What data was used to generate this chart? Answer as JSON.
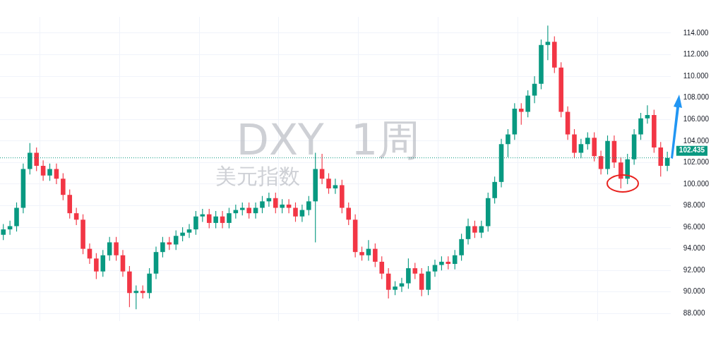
{
  "chart_data": {
    "type": "candlestick",
    "title": "DXY  1周",
    "subtitle": "美元指数",
    "categories": [
      null,
      null,
      null,
      null,
      null,
      null,
      null,
      null,
      null,
      null,
      null,
      null,
      null,
      null,
      null,
      null,
      null,
      null,
      null,
      null,
      null,
      null,
      null,
      null,
      null,
      null,
      null,
      null,
      null,
      null,
      null,
      null,
      null,
      null,
      null,
      null,
      null,
      null,
      null,
      null,
      null,
      null,
      null,
      null,
      null,
      null,
      null,
      null,
      null,
      null,
      null,
      null,
      null,
      null,
      null,
      null,
      null,
      null,
      null,
      null,
      null,
      null,
      null,
      null,
      null,
      null,
      null,
      null,
      null,
      null,
      null,
      null,
      null,
      null,
      null,
      null,
      null,
      null,
      null,
      null,
      null,
      null,
      null,
      null,
      null,
      null,
      null,
      null,
      null,
      null,
      null,
      null,
      null,
      null,
      null,
      null,
      null,
      null,
      null,
      null,
      null
    ],
    "ohlc": [
      [
        95.3,
        96.3,
        94.8,
        95.8
      ],
      [
        95.8,
        96.6,
        95.3,
        96.1
      ],
      [
        96.1,
        98.3,
        95.6,
        97.8
      ],
      [
        97.8,
        101.9,
        97.3,
        101.4
      ],
      [
        101.4,
        103.8,
        100.9,
        102.9
      ],
      [
        102.9,
        103.4,
        101.2,
        101.7
      ],
      [
        101.7,
        102.2,
        100.3,
        100.8
      ],
      [
        100.8,
        101.9,
        100.3,
        101.4
      ],
      [
        101.4,
        101.9,
        100.0,
        100.5
      ],
      [
        100.5,
        101.0,
        98.5,
        99.0
      ],
      [
        99.0,
        99.5,
        96.8,
        97.3
      ],
      [
        97.3,
        97.8,
        96.2,
        96.7
      ],
      [
        96.7,
        97.2,
        93.5,
        94.0
      ],
      [
        94.0,
        94.5,
        92.6,
        93.1
      ],
      [
        93.1,
        93.6,
        91.2,
        91.9
      ],
      [
        91.9,
        93.9,
        91.4,
        93.4
      ],
      [
        93.4,
        95.1,
        92.9,
        94.6
      ],
      [
        94.6,
        95.1,
        92.9,
        93.4
      ],
      [
        93.4,
        93.9,
        91.4,
        91.9
      ],
      [
        91.9,
        92.4,
        88.6,
        89.9
      ],
      [
        89.9,
        90.6,
        88.4,
        90.1
      ],
      [
        90.1,
        90.6,
        89.4,
        89.9
      ],
      [
        89.9,
        92.2,
        89.4,
        91.7
      ],
      [
        91.7,
        94.2,
        91.2,
        93.7
      ],
      [
        93.7,
        95.1,
        93.2,
        94.6
      ],
      [
        94.6,
        95.1,
        93.9,
        94.4
      ],
      [
        94.4,
        95.7,
        93.9,
        95.2
      ],
      [
        95.2,
        96.0,
        94.7,
        95.5
      ],
      [
        95.5,
        96.3,
        95.0,
        95.8
      ],
      [
        95.8,
        97.5,
        95.3,
        97.0
      ],
      [
        97.0,
        97.7,
        96.5,
        97.2
      ],
      [
        97.2,
        97.7,
        95.9,
        96.4
      ],
      [
        96.4,
        97.5,
        95.9,
        97.0
      ],
      [
        97.0,
        97.5,
        95.9,
        96.4
      ],
      [
        96.4,
        97.8,
        95.9,
        97.3
      ],
      [
        97.3,
        98.1,
        96.8,
        97.6
      ],
      [
        97.6,
        98.3,
        97.1,
        97.8
      ],
      [
        97.8,
        98.3,
        96.8,
        97.3
      ],
      [
        97.3,
        98.3,
        96.8,
        97.8
      ],
      [
        97.8,
        98.9,
        97.3,
        98.4
      ],
      [
        98.4,
        99.2,
        97.9,
        98.7
      ],
      [
        98.7,
        99.2,
        97.3,
        97.8
      ],
      [
        97.8,
        98.6,
        97.3,
        98.1
      ],
      [
        98.1,
        98.6,
        97.3,
        97.8
      ],
      [
        97.8,
        98.3,
        96.5,
        97.0
      ],
      [
        97.0,
        98.1,
        96.5,
        97.6
      ],
      [
        97.6,
        98.9,
        97.1,
        98.4
      ],
      [
        98.4,
        102.9,
        94.6,
        101.4
      ],
      [
        101.4,
        102.8,
        100.0,
        100.5
      ],
      [
        100.5,
        101.0,
        99.1,
        99.6
      ],
      [
        99.6,
        100.5,
        99.1,
        99.9
      ],
      [
        99.9,
        100.4,
        97.3,
        97.8
      ],
      [
        97.8,
        98.3,
        96.2,
        96.7
      ],
      [
        96.7,
        97.2,
        93.2,
        93.7
      ],
      [
        93.7,
        94.2,
        92.9,
        93.4
      ],
      [
        93.4,
        94.8,
        92.9,
        94.0
      ],
      [
        94.0,
        94.5,
        92.3,
        92.8
      ],
      [
        92.8,
        93.3,
        91.2,
        91.7
      ],
      [
        91.7,
        92.2,
        89.4,
        90.2
      ],
      [
        90.2,
        91.0,
        89.7,
        90.5
      ],
      [
        90.5,
        91.3,
        90.0,
        90.8
      ],
      [
        90.8,
        93.1,
        90.3,
        92.2
      ],
      [
        92.2,
        92.7,
        91.2,
        91.7
      ],
      [
        91.7,
        92.2,
        89.6,
        90.2
      ],
      [
        90.2,
        92.4,
        89.7,
        91.9
      ],
      [
        91.9,
        93.0,
        91.4,
        92.5
      ],
      [
        92.5,
        93.3,
        92.0,
        92.8
      ],
      [
        92.8,
        93.3,
        92.1,
        92.6
      ],
      [
        92.6,
        93.9,
        92.1,
        93.4
      ],
      [
        93.4,
        95.4,
        92.9,
        94.9
      ],
      [
        94.9,
        96.8,
        94.4,
        96.1
      ],
      [
        96.1,
        96.6,
        95.0,
        95.5
      ],
      [
        95.5,
        96.6,
        95.0,
        96.1
      ],
      [
        96.1,
        99.2,
        95.6,
        98.7
      ],
      [
        98.7,
        100.7,
        98.2,
        100.2
      ],
      [
        100.2,
        104.2,
        99.7,
        103.7
      ],
      [
        103.7,
        105.1,
        102.5,
        104.6
      ],
      [
        104.6,
        107.5,
        104.1,
        107.0
      ],
      [
        107.0,
        107.5,
        105.5,
        106.7
      ],
      [
        106.7,
        108.7,
        106.2,
        108.2
      ],
      [
        108.2,
        110.0,
        107.5,
        109.3
      ],
      [
        109.3,
        113.4,
        108.8,
        112.9
      ],
      [
        112.9,
        114.7,
        111.5,
        113.2
      ],
      [
        113.2,
        113.7,
        110.3,
        110.8
      ],
      [
        110.8,
        111.3,
        106.2,
        106.7
      ],
      [
        106.7,
        107.2,
        104.1,
        104.6
      ],
      [
        104.6,
        105.1,
        102.4,
        102.9
      ],
      [
        102.9,
        104.2,
        102.4,
        103.7
      ],
      [
        103.7,
        104.8,
        103.2,
        104.3
      ],
      [
        104.3,
        104.8,
        102.1,
        102.6
      ],
      [
        102.6,
        103.1,
        100.9,
        101.4
      ],
      [
        101.4,
        104.5,
        100.9,
        104.0
      ],
      [
        104.0,
        104.5,
        101.5,
        102.0
      ],
      [
        102.0,
        102.5,
        99.6,
        100.5
      ],
      [
        100.5,
        102.8,
        100.0,
        102.3
      ],
      [
        102.3,
        105.1,
        101.8,
        104.6
      ],
      [
        104.6,
        106.6,
        104.1,
        106.1
      ],
      [
        106.1,
        107.3,
        105.6,
        106.4
      ],
      [
        106.4,
        106.9,
        102.9,
        103.4
      ],
      [
        103.4,
        103.9,
        100.7,
        101.7
      ],
      [
        101.7,
        103.0,
        101.2,
        102.435
      ]
    ],
    "colors": [
      "#089981",
      "#089981",
      "#089981",
      "#089981",
      "#089981",
      "#f23645",
      "#f23645",
      "#089981",
      "#f23645",
      "#f23645",
      "#f23645",
      "#f23645",
      "#f23645",
      "#f23645",
      "#f23645",
      "#089981",
      "#089981",
      "#f23645",
      "#f23645",
      "#f23645",
      "#089981",
      "#f23645",
      "#089981",
      "#089981",
      "#089981",
      "#f23645",
      "#089981",
      "#089981",
      "#089981",
      "#089981",
      "#089981",
      "#f23645",
      "#089981",
      "#f23645",
      "#089981",
      "#089981",
      "#089981",
      "#f23645",
      "#089981",
      "#089981",
      "#089981",
      "#f23645",
      "#089981",
      "#f23645",
      "#f23645",
      "#089981",
      "#089981",
      "#089981",
      "#f23645",
      "#f23645",
      "#089981",
      "#f23645",
      "#f23645",
      "#f23645",
      "#f23645",
      "#089981",
      "#f23645",
      "#f23645",
      "#f23645",
      "#089981",
      "#089981",
      "#089981",
      "#f23645",
      "#f23645",
      "#089981",
      "#089981",
      "#089981",
      "#f23645",
      "#089981",
      "#089981",
      "#089981",
      "#f23645",
      "#089981",
      "#089981",
      "#089981",
      "#089981",
      "#089981",
      "#089981",
      "#f23645",
      "#089981",
      "#089981",
      "#089981",
      "#089981",
      "#f23645",
      "#f23645",
      "#f23645",
      "#f23645",
      "#089981",
      "#089981",
      "#f23645",
      "#f23645",
      "#089981",
      "#f23645",
      "#f23645",
      "#089981",
      "#089981",
      "#089981",
      "#089981",
      "#f23645",
      "#f23645",
      "#089981"
    ],
    "ylim": [
      87.3,
      115.5
    ],
    "yticks": [
      {
        "value": 88,
        "label": "88.000"
      },
      {
        "value": 90,
        "label": "90.000"
      },
      {
        "value": 92,
        "label": "92.000"
      },
      {
        "value": 94,
        "label": "94.000"
      },
      {
        "value": 96,
        "label": "96.000"
      },
      {
        "value": 98,
        "label": "98.000"
      },
      {
        "value": 100,
        "label": "100.000"
      },
      {
        "value": 102,
        "label": "102.000"
      },
      {
        "value": 104,
        "label": "104.000"
      },
      {
        "value": 106,
        "label": "106.000"
      },
      {
        "value": 108,
        "label": "108.000"
      },
      {
        "value": 110,
        "label": "110.000"
      },
      {
        "value": 112,
        "label": "112.000"
      },
      {
        "value": 114,
        "label": "114.000"
      }
    ],
    "ref_lines": [
      {
        "axis": "y",
        "value": 102.435,
        "label": "102.435",
        "color": "#089981",
        "line_style": "dotted"
      }
    ],
    "grid": true,
    "legend": false,
    "tick_labels": "y"
  }
}
